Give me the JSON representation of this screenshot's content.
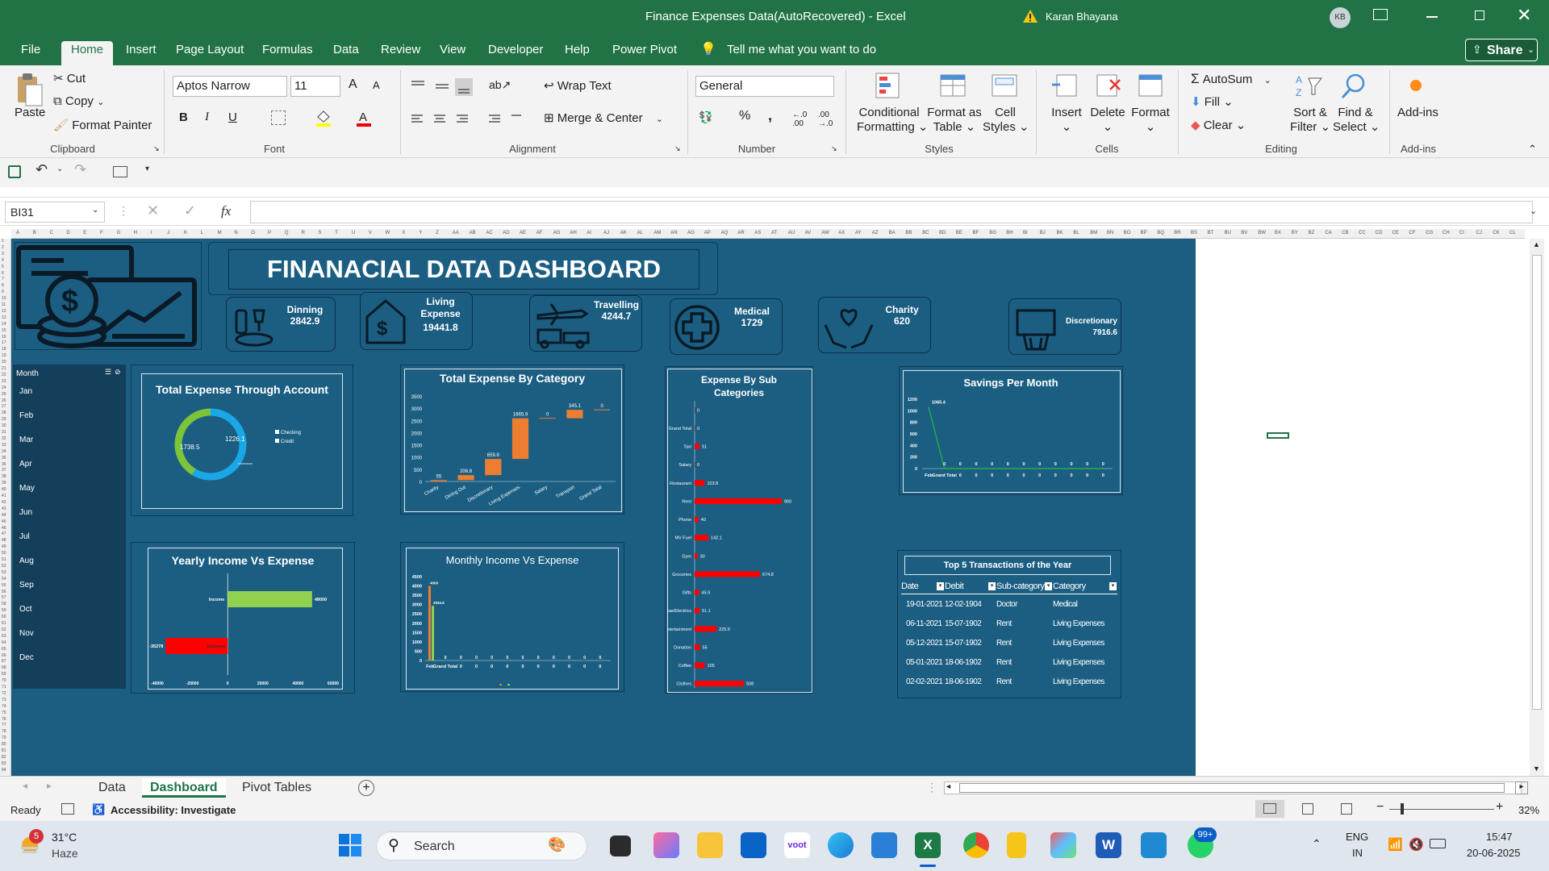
{
  "window": {
    "title": "Finance Expenses Data(AutoRecovered)  -  Excel",
    "user": "Karan Bhayana",
    "initials": "KB"
  },
  "tabs": [
    "File",
    "Home",
    "Insert",
    "Page Layout",
    "Formulas",
    "Data",
    "Review",
    "View",
    "Developer",
    "Help",
    "Power Pivot"
  ],
  "tell_me": "Tell me what you want to do",
  "share": "Share",
  "ribbon": {
    "clipboard": {
      "paste": "Paste",
      "cut": "Cut",
      "copy": "Copy",
      "format_painter": "Format Painter",
      "label": "Clipboard"
    },
    "font": {
      "name": "Aptos Narrow",
      "size": "11",
      "label": "Font",
      "bold": "B",
      "italic": "I",
      "underline": "U",
      "inc": "A",
      "dec": "A"
    },
    "alignment": {
      "wrap": "Wrap Text",
      "merge": "Merge & Center",
      "label": "Alignment"
    },
    "number": {
      "format": "General",
      "label": "Number",
      "percent": "%",
      "comma": ","
    },
    "styles": {
      "cond": "Conditional",
      "cond2": "Formatting",
      "fmt": "Format as",
      "fmt2": "Table",
      "cell": "Cell",
      "cell2": "Styles",
      "label": "Styles"
    },
    "cells": {
      "insert": "Insert",
      "delete": "Delete",
      "format": "Format",
      "label": "Cells"
    },
    "editing": {
      "autosum": "AutoSum",
      "fill": "Fill",
      "clear": "Clear",
      "sort": "Sort &",
      "sort2": "Filter",
      "find": "Find &",
      "find2": "Select",
      "label": "Editing"
    },
    "addins": {
      "addins": "Add-ins",
      "label": "Add-ins"
    }
  },
  "namebox": "BI31",
  "fx": "fx",
  "dashboard": {
    "title": "FINANACIAL DATA DASHBOARD",
    "kpis": [
      {
        "label": "Dinning",
        "value": "2842.9"
      },
      {
        "label": "Living Expense",
        "value": "19441.8"
      },
      {
        "label": "Travelling",
        "value": "4244.7"
      },
      {
        "label": "Medical",
        "value": "1729"
      },
      {
        "label": "Charity",
        "value": "620"
      },
      {
        "label": "Discretionary",
        "value": "7916.6"
      }
    ],
    "slicer": {
      "header": "Month",
      "months": [
        "Jan",
        "Feb",
        "Mar",
        "Apr",
        "May",
        "Jun",
        "Jul",
        "Aug",
        "Sep",
        "Oct",
        "Nov",
        "Dec"
      ]
    },
    "top5": {
      "title": "Top 5 Transactions of the Year",
      "headers": [
        "Date",
        "Debit",
        "Sub-category",
        "Category"
      ],
      "rows": [
        [
          "19-01-2021",
          "12-02-1904",
          "Doctor",
          "Medical"
        ],
        [
          "06-11-2021",
          "15-07-1902",
          "Rent",
          "Living Expenses"
        ],
        [
          "05-12-2021",
          "15-07-1902",
          "Rent",
          "Living Expenses"
        ],
        [
          "05-01-2021",
          "18-06-1902",
          "Rent",
          "Living Expenses"
        ],
        [
          "02-02-2021",
          "18-06-1902",
          "Rent",
          "Living Expenses"
        ]
      ]
    }
  },
  "chart_data": [
    {
      "type": "pie",
      "title": "Total Expense Through Account",
      "categories": [
        "Checking",
        "Credit"
      ],
      "values": [
        1738.5,
        1226.1
      ],
      "data_labels": [
        "1738.5",
        "1226.1"
      ]
    },
    {
      "type": "bar",
      "title": "Total Expense  By Category",
      "categories": [
        "Charity",
        "Dining Out",
        "Discretionary",
        "Living Expenses",
        "Salary",
        "Transport",
        "Grand Total"
      ],
      "values": [
        55,
        206.8,
        659.8,
        1665.9,
        0,
        345.1,
        0
      ],
      "yticks": [
        "0",
        "500",
        "1000",
        "1500",
        "2000",
        "2500",
        "3000",
        "3500"
      ],
      "ylim": [
        0,
        3500
      ]
    },
    {
      "type": "bar",
      "title": "Expense By Sub Categories",
      "categories": [
        "",
        "Grand Total",
        "Taxi",
        "Salary",
        "Restaurant",
        "Rent",
        "Phone",
        "MV Fuel",
        "Gym",
        "Groceries",
        "Gifts",
        "Gas/Electrics",
        "Entertainment",
        "Donation",
        "Coffee",
        "Clothes"
      ],
      "values": [
        0,
        0,
        51,
        0,
        103.8,
        900,
        40,
        142.1,
        30,
        674.8,
        45.9,
        51.1,
        225.9,
        55,
        105,
        508
      ]
    },
    {
      "type": "line",
      "title": "Savings  Per Month",
      "categories": [
        "Feb",
        "Grand Total",
        "",
        "",
        "",
        "",
        "",
        "",
        "",
        "",
        "",
        ""
      ],
      "values": [
        1065.4,
        0,
        0,
        0,
        0,
        0,
        0,
        0,
        0,
        0,
        0,
        0
      ],
      "yticks": [
        "0",
        "200",
        "400",
        "600",
        "800",
        "1000",
        "1200"
      ],
      "ylim": [
        0,
        1200
      ]
    },
    {
      "type": "bar",
      "title": "Yearly Income Vs Expense",
      "categories": [
        "Income",
        "Expense"
      ],
      "values": [
        48000,
        -35278
      ],
      "value_labels": [
        "48000",
        "-35278"
      ],
      "xticks": [
        "-40000",
        "-20000",
        "0",
        "20000",
        "40000",
        "60000"
      ]
    },
    {
      "type": "bar",
      "title": "Monthly Income Vs Expense",
      "categories": [
        "Feb",
        "Grand Total",
        "",
        "",
        "",
        "",
        "",
        "",
        "",
        "",
        "",
        ""
      ],
      "series": [
        {
          "name": "Income",
          "values": [
            4000,
            0,
            0,
            0,
            0,
            0,
            0,
            0,
            0,
            0,
            0,
            0
          ]
        },
        {
          "name": "Expense",
          "values": [
            2934.6,
            0,
            0,
            0,
            0,
            0,
            0,
            0,
            0,
            0,
            0,
            0
          ]
        }
      ],
      "value_labels": [
        "4000",
        "2934.6"
      ],
      "yticks": [
        "0",
        "500",
        "1000",
        "1500",
        "2000",
        "2500",
        "3000",
        "3500",
        "4000",
        "4500"
      ],
      "ylim": [
        0,
        4500
      ]
    }
  ],
  "sheets": [
    "Data",
    "Dashboard",
    "Pivot Tables"
  ],
  "status": {
    "ready": "Ready",
    "accessibility": "Accessibility: Investigate",
    "zoom": "32%"
  },
  "taskbar": {
    "temp": "31°C",
    "weather": "Haze",
    "weather_badge": "5",
    "search": "Search",
    "lang1": "ENG",
    "lang2": "IN",
    "time": "15:47",
    "date": "20-06-2025",
    "badge": "99+",
    "voot": "voot"
  }
}
